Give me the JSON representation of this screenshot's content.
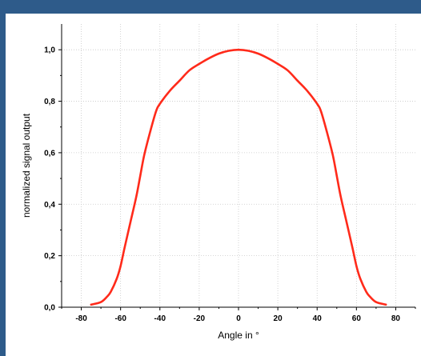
{
  "chart_data": {
    "type": "line",
    "title": "",
    "xlabel": "Angle in °",
    "ylabel": "normalized signal output",
    "xlim": [
      -90,
      90
    ],
    "ylim": [
      0,
      1.1
    ],
    "x_ticks": [
      -80,
      -60,
      -40,
      -20,
      0,
      20,
      40,
      60,
      80
    ],
    "x_tick_labels": [
      "-80",
      "-60",
      "-40",
      "-20",
      "0",
      "20",
      "40",
      "60",
      "80"
    ],
    "y_ticks": [
      0,
      0.2,
      0.4,
      0.6,
      0.8,
      1.0
    ],
    "y_tick_labels": [
      "0,0",
      "0,2",
      "0,4",
      "0,6",
      "0,8",
      "1,0"
    ],
    "grid": true,
    "series": [
      {
        "color": "#ff2a1a",
        "x": [
          -75,
          -70,
          -67,
          -65,
          -62,
          -60,
          -58,
          -55,
          -52,
          -50,
          -48,
          -45,
          -42,
          -40,
          -35,
          -30,
          -25,
          -20,
          -15,
          -10,
          -5,
          0,
          5,
          10,
          15,
          20,
          25,
          30,
          35,
          40,
          42,
          45,
          48,
          50,
          52,
          55,
          58,
          60,
          62,
          65,
          67,
          70,
          75
        ],
        "y": [
          0.01,
          0.02,
          0.04,
          0.06,
          0.11,
          0.16,
          0.23,
          0.33,
          0.43,
          0.51,
          0.59,
          0.68,
          0.76,
          0.79,
          0.84,
          0.88,
          0.92,
          0.945,
          0.967,
          0.985,
          0.996,
          1.0,
          0.996,
          0.985,
          0.967,
          0.945,
          0.92,
          0.88,
          0.84,
          0.79,
          0.76,
          0.68,
          0.59,
          0.51,
          0.43,
          0.33,
          0.23,
          0.16,
          0.11,
          0.06,
          0.04,
          0.02,
          0.01
        ]
      }
    ]
  }
}
